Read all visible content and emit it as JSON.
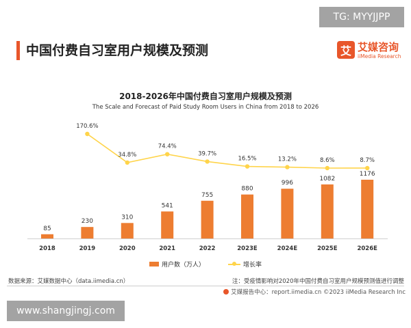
{
  "watermarks": {
    "top_right": "TG: MYYJJPP",
    "bottom_left": "www.shangjingj.com"
  },
  "header": {
    "title": "中国付费自习室用户规模及预测",
    "brand_icon_char": "艾",
    "brand_name": "艾媒咨询",
    "brand_en": "iiMedia Research"
  },
  "chart_data": {
    "type": "bar",
    "title": "2018-2026年中国付费自习室用户规模及预测",
    "subtitle": "The Scale and Forecast of Paid Study Room Users in China from 2018 to 2026",
    "categories": [
      "2018",
      "2019",
      "2020",
      "2021",
      "2022",
      "2023E",
      "2024E",
      "2025E",
      "2026E"
    ],
    "series": [
      {
        "name": "用户数（万人）",
        "type": "bar",
        "color": "#ed7d31",
        "values": [
          85,
          230,
          310,
          541,
          755,
          880,
          996,
          1082,
          1176
        ]
      },
      {
        "name": "增长率",
        "type": "line",
        "color": "#ffd44a",
        "values": [
          null,
          170.6,
          34.8,
          74.4,
          39.7,
          16.5,
          13.2,
          8.6,
          8.7
        ],
        "labels": [
          "",
          "170.6%",
          "34.8%",
          "74.4%",
          "39.7%",
          "16.5%",
          "13.2%",
          "8.6%",
          "8.7%"
        ]
      }
    ],
    "bar_labels": [
      "85",
      "230",
      "310",
      "541",
      "755",
      "880",
      "996",
      "1082",
      "1176"
    ],
    "legend_position": "bottom",
    "grid": false
  },
  "footer": {
    "source": "数据来源：艾媒数据中心（data.iimedia.cn）",
    "note": "注：受疫情影响对2020年中国付费自习室用户规模预测值进行调整",
    "report": "艾媒报告中心：report.iimedia.cn   ©2023   iiMedia Research Inc"
  },
  "colors": {
    "accent": "#e8562a",
    "bar": "#ed7d31",
    "line": "#ffd44a"
  }
}
